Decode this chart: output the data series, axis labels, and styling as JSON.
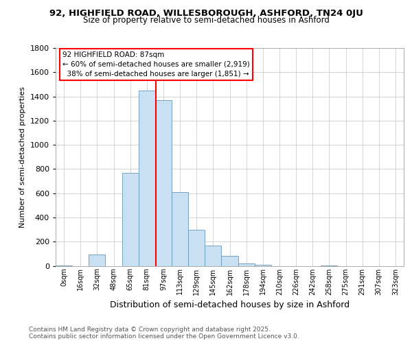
{
  "title_line1": "92, HIGHFIELD ROAD, WILLESBOROUGH, ASHFORD, TN24 0JU",
  "title_line2": "Size of property relative to semi-detached houses in Ashford",
  "xlabel": "Distribution of semi-detached houses by size in Ashford",
  "ylabel": "Number of semi-detached properties",
  "footnote": "Contains HM Land Registry data © Crown copyright and database right 2025.\nContains public sector information licensed under the Open Government Licence v3.0.",
  "bin_labels": [
    "0sqm",
    "16sqm",
    "32sqm",
    "48sqm",
    "65sqm",
    "81sqm",
    "97sqm",
    "113sqm",
    "129sqm",
    "145sqm",
    "162sqm",
    "178sqm",
    "194sqm",
    "210sqm",
    "226sqm",
    "242sqm",
    "258sqm",
    "275sqm",
    "291sqm",
    "307sqm",
    "323sqm"
  ],
  "bar_values": [
    2,
    0,
    95,
    0,
    770,
    1450,
    1370,
    610,
    295,
    170,
    85,
    20,
    10,
    0,
    0,
    0,
    5,
    0,
    0,
    0,
    0
  ],
  "bar_color": "#c9dff2",
  "bar_edge_color": "#6699bb",
  "vline_x": 5.55,
  "vline_color": "red",
  "annotation_box_text": "92 HIGHFIELD ROAD: 87sqm\n← 60% of semi-detached houses are smaller (2,919)\n  38% of semi-detached houses are larger (1,851) →",
  "ylim": [
    0,
    1800
  ],
  "yticks": [
    0,
    200,
    400,
    600,
    800,
    1000,
    1200,
    1400,
    1600,
    1800
  ],
  "bg_color": "#ffffff",
  "plot_bg_color": "#ffffff",
  "grid_color": "#cccccc",
  "title_fontsize": 9.5,
  "subtitle_fontsize": 8.5,
  "ylabel_fontsize": 8,
  "xlabel_fontsize": 9,
  "ytick_fontsize": 8,
  "xtick_fontsize": 7,
  "annot_fontsize": 7.5,
  "footnote_fontsize": 6.5
}
